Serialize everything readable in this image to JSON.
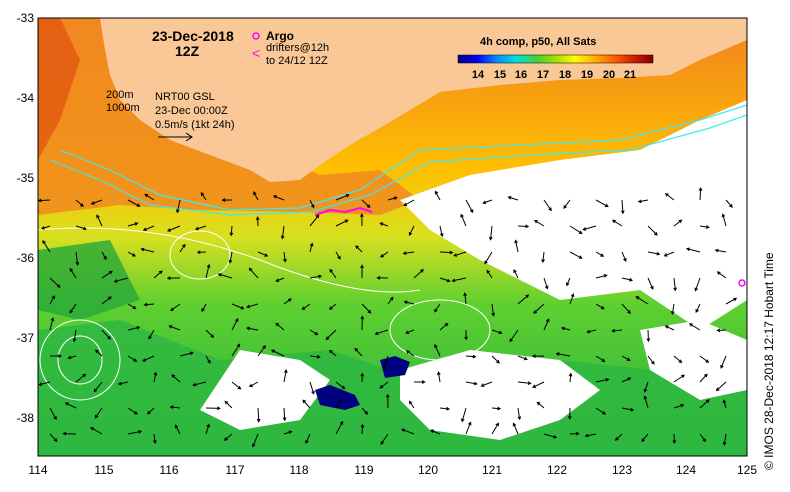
{
  "title": {
    "date": "23-Dec-2018",
    "time": "12Z"
  },
  "legend": {
    "argo_label": "Argo",
    "drifter_symbol": "<",
    "drifter_line1": "drifters@12h",
    "drifter_line2": "to 24/12 12Z",
    "argo_color": "#ff00ff",
    "drifter_color": "#ff00ff"
  },
  "contours_label": {
    "line1": "200m",
    "line2": "1000m"
  },
  "gsl_label": {
    "line1": "NRT00 GSL",
    "line2": "23-Dec 00:00Z",
    "line3": "0.5m/s (1kt 24h)"
  },
  "colorbar": {
    "title": "4h comp, p50, All Sats",
    "ticks": [
      "14",
      "15",
      "16",
      "17",
      "18",
      "19",
      "20",
      "21"
    ],
    "colors": [
      "#000080",
      "#0000ff",
      "#0090ff",
      "#00e0e0",
      "#40d040",
      "#a0e000",
      "#ffff00",
      "#ffb000",
      "#ff6000",
      "#d02000",
      "#800000"
    ]
  },
  "axes": {
    "x_ticks": [
      "114",
      "115",
      "116",
      "117",
      "118",
      "119",
      "120",
      "121",
      "122",
      "123",
      "124",
      "125"
    ],
    "y_ticks": [
      "-33",
      "-34",
      "-35",
      "-36",
      "-37",
      "-38"
    ]
  },
  "credit": "©  IMOS 28-Dec-2018 12:17 Hobart Time",
  "colors": {
    "land": "#fac896",
    "cloud": "#ffffff",
    "contour": "#40e8f0",
    "sla_contour": "#ffffff",
    "warm": "#f07020",
    "mid": "#ffd000",
    "cool": "#30c030"
  }
}
